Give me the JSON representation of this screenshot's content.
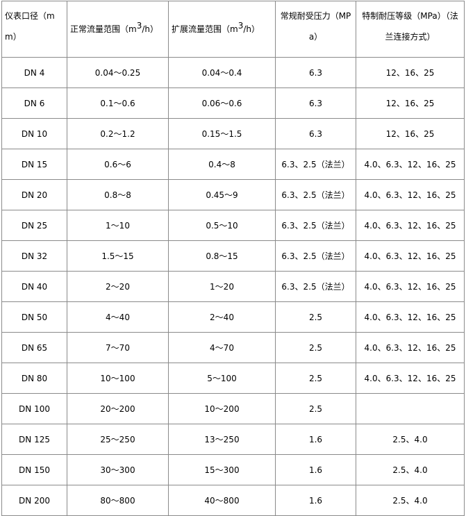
{
  "headers": {
    "size_a": "仪表口径（m",
    "size_b": "m）",
    "normal_flow": "正常流量范围（m",
    "normal_flow_sup": "3",
    "normal_flow_unit": "/h）",
    "extended_flow": "扩展流量范围（m",
    "extended_flow_sup": "3",
    "extended_flow_unit": "/h）",
    "pressure_a": "常规耐受压力（MP",
    "pressure_b": "a）",
    "special_a": "特制耐压等级（MPa）（法",
    "special_b": "兰连接方式）"
  },
  "rows": [
    [
      "DN 4",
      "0.04～0.25",
      "0.04～0.4",
      "6.3",
      "12、16、25"
    ],
    [
      "DN 6",
      "0.1～0.6",
      "0.06～0.6",
      "6.3",
      "12、16、25"
    ],
    [
      "DN 10",
      "0.2～1.2",
      "0.15～1.5",
      "6.3",
      "12、16、25"
    ],
    [
      "DN 15",
      "0.6～6",
      "0.4～8",
      "6.3、2.5（法兰）",
      "4.0、6.3、12、16、25"
    ],
    [
      "DN 20",
      "0.8～8",
      "0.45～9",
      "6.3、2.5（法兰）",
      "4.0、6.3、12、16、25"
    ],
    [
      "DN 25",
      "1～10",
      "0.5～10",
      "6.3、2.5（法兰）",
      "4.0、6.3、12、16、25"
    ],
    [
      "DN 32",
      "1.5～15",
      "0.8～15",
      "6.3、2.5（法兰）",
      "4.0、6.3、12、16、25"
    ],
    [
      "DN 40",
      "2～20",
      "1～20",
      "6.3、2.5（法兰）",
      "4.0、6.3、12、16、25"
    ],
    [
      "DN 50",
      "4～40",
      "2～40",
      "2.5",
      "4.0、6.3、12、16、25"
    ],
    [
      "DN 65",
      "7～70",
      "4～70",
      "2.5",
      "4.0、6.3、12、16、25"
    ],
    [
      "DN 80",
      "10～100",
      "5～100",
      "2.5",
      "4.0、6.3、12、16、25"
    ],
    [
      "DN 100",
      "20～200",
      "10～200",
      "2.5",
      ""
    ],
    [
      "DN 125",
      "25～250",
      "13～250",
      "1.6",
      "2.5、4.0"
    ],
    [
      "DN 150",
      "30～300",
      "15～300",
      "1.6",
      "2.5、4.0"
    ],
    [
      "DN 200",
      "80～800",
      "40～800",
      "1.6",
      "2.5、4.0"
    ]
  ]
}
